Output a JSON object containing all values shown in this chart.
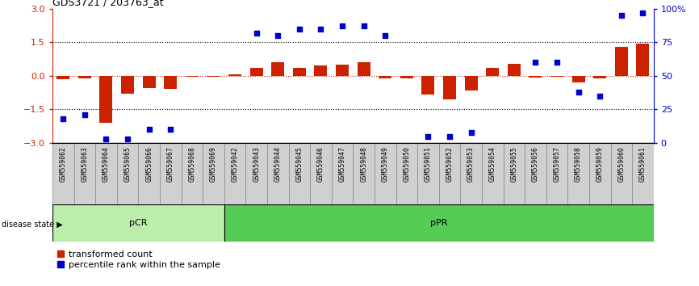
{
  "title": "GDS3721 / 203763_at",
  "samples": [
    "GSM559062",
    "GSM559063",
    "GSM559064",
    "GSM559065",
    "GSM559066",
    "GSM559067",
    "GSM559068",
    "GSM559069",
    "GSM559042",
    "GSM559043",
    "GSM559044",
    "GSM559045",
    "GSM559046",
    "GSM559047",
    "GSM559048",
    "GSM559049",
    "GSM559050",
    "GSM559051",
    "GSM559052",
    "GSM559053",
    "GSM559054",
    "GSM559055",
    "GSM559056",
    "GSM559057",
    "GSM559058",
    "GSM559059",
    "GSM559060",
    "GSM559061"
  ],
  "transformed_count": [
    -0.15,
    -0.12,
    -2.1,
    -0.8,
    -0.55,
    -0.6,
    -0.05,
    -0.04,
    0.05,
    0.35,
    0.6,
    0.35,
    0.45,
    0.5,
    0.6,
    -0.12,
    -0.1,
    -0.85,
    -1.05,
    -0.65,
    0.35,
    0.55,
    -0.08,
    -0.06,
    -0.3,
    -0.12,
    1.3,
    1.45
  ],
  "percentile_rank": [
    18,
    21,
    3,
    3,
    10,
    10,
    null,
    null,
    null,
    82,
    80,
    85,
    85,
    87,
    87,
    80,
    null,
    5,
    5,
    8,
    null,
    null,
    60,
    60,
    38,
    35,
    95,
    97
  ],
  "pcr_count": 8,
  "ppr_count": 20,
  "bar_color": "#cc2200",
  "dot_color": "#0000cc",
  "ylim": [
    -3,
    3
  ],
  "y2lim": [
    0,
    100
  ],
  "yticks_left": [
    -3,
    -1.5,
    0,
    1.5,
    3
  ],
  "yticks_right": [
    0,
    25,
    50,
    75,
    100
  ],
  "hline_dotted": [
    1.5,
    -1.5
  ],
  "pcr_color": "#bbeeaa",
  "ppr_color": "#55cc55",
  "pcr_label": "pCR",
  "ppr_label": "pPR",
  "disease_state_label": "disease state",
  "legend_bar": "transformed count",
  "legend_dot": "percentile rank within the sample",
  "tick_box_color": "#d0d0d0",
  "tick_box_edge": "#888888"
}
